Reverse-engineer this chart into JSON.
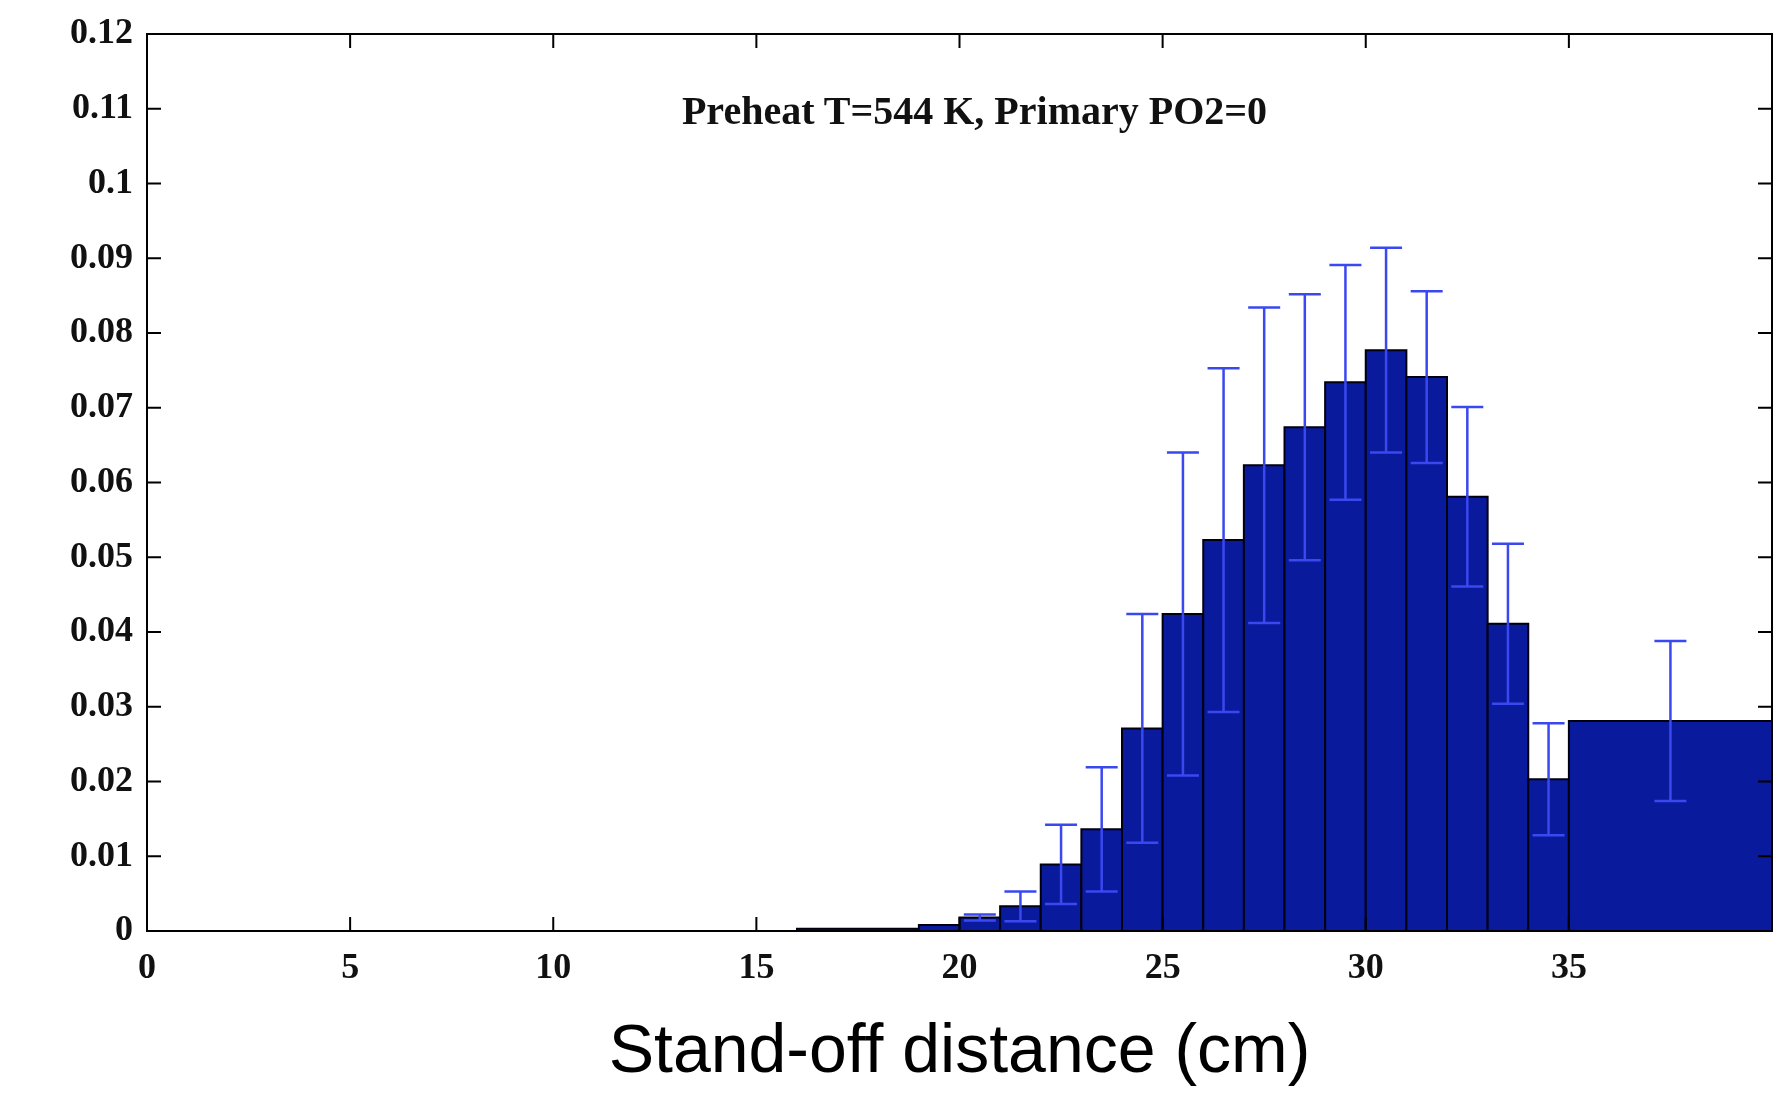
{
  "chart_data": {
    "type": "histogram",
    "title": "Preheat T=544 K, Primary PO2=0",
    "xlabel": "Stand-off distance (cm)",
    "bins": [
      16,
      19,
      20,
      21,
      22,
      23,
      24,
      25,
      26,
      27,
      28,
      29,
      30,
      31,
      32,
      33,
      34,
      35,
      40
    ],
    "values": [
      0.0003,
      0.0008,
      0.0018,
      0.0033,
      0.0089,
      0.0136,
      0.0271,
      0.0424,
      0.0523,
      0.0623,
      0.0674,
      0.0734,
      0.0777,
      0.0741,
      0.0581,
      0.0411,
      0.0203,
      0.0281
    ],
    "errors": [
      null,
      null,
      0.0004,
      0.002,
      0.0053,
      0.0083,
      0.0153,
      0.0216,
      0.023,
      0.0211,
      0.0178,
      0.0157,
      0.0137,
      0.0115,
      0.012,
      0.0107,
      0.0075,
      0.0107
    ],
    "color": "#0a1a9c",
    "xlim": [
      0,
      40
    ],
    "xticks": [
      0,
      5,
      10,
      15,
      20,
      25,
      30,
      35
    ],
    "ylim": [
      0,
      0.12
    ],
    "yticks": [
      0,
      0.01,
      0.02,
      0.03,
      0.04,
      0.05,
      0.06,
      0.07,
      0.08,
      0.09,
      0.1,
      0.11,
      0.12
    ]
  }
}
